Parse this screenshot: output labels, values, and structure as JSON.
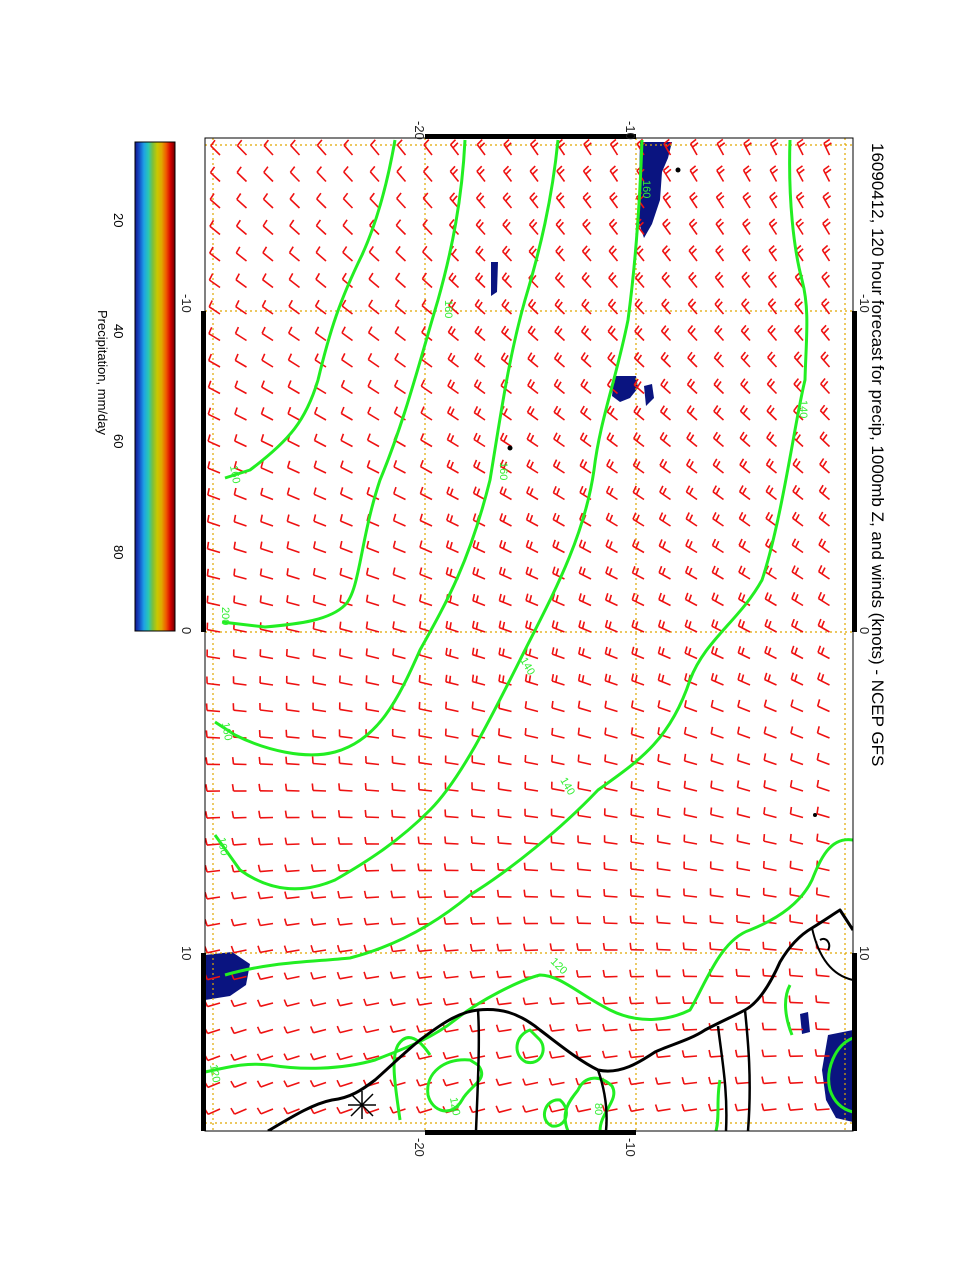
{
  "title": "16090412, 120 hour forecast for precip, 1000mb Z, and winds (knots) - NCEP GFS",
  "colorbar": {
    "label": "Precipitation, mm/day",
    "ticks": [
      "20",
      "40",
      "60",
      "80"
    ],
    "stops": [
      "#6a0000",
      "#d40000",
      "#f05a00",
      "#e0a800",
      "#c8c800",
      "#7cc03c",
      "#28c8b4",
      "#1ea0e6",
      "#1450c8",
      "#14148c"
    ]
  },
  "axes": {
    "top_ticks": [
      "-20",
      "-10"
    ],
    "bottom_ticks": [
      "-20",
      "-10"
    ],
    "left_ticks": [
      "-10",
      "0",
      "10"
    ],
    "right_ticks": [
      "-10",
      "0",
      "10"
    ]
  },
  "contour_labels": [
    "160",
    "160",
    "160",
    "140",
    "140",
    "140",
    "120",
    "120",
    "120",
    "160",
    "160",
    "200",
    "160",
    "80",
    "80"
  ],
  "colors": {
    "wind_barb": "#ee1111",
    "contour": "#22ee22",
    "grid": "#e0a800",
    "coast": "#000000",
    "precip": "#0a1480"
  }
}
